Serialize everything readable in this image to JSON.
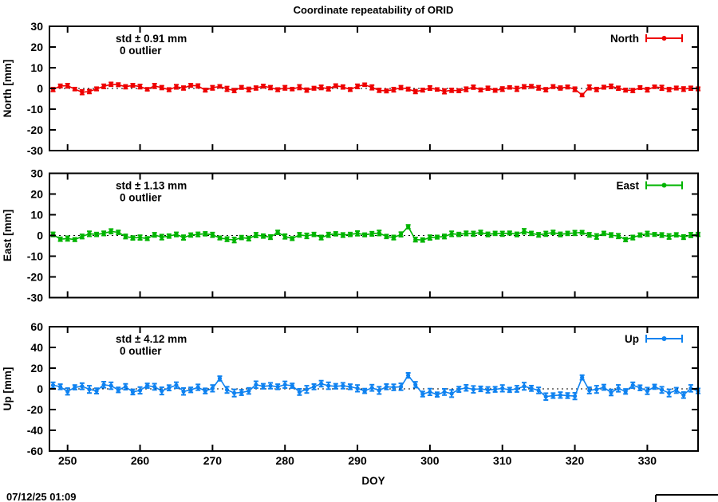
{
  "title": "Coordinate repeatability of ORID",
  "xlabel": "DOY",
  "timestamp": "07/12/25 01:09",
  "x_axis": {
    "ticks": [
      250,
      260,
      270,
      280,
      290,
      300,
      310,
      320,
      330
    ],
    "range": [
      247.5,
      337
    ]
  },
  "chart_data": [
    {
      "type": "line",
      "style": "points-with-y-errorbars",
      "panel": "North",
      "ylabel": "North [mm]",
      "std_label": "std ± 0.91 mm",
      "outlier_label": "0 outlier",
      "legend_label": "North",
      "color": "#ee0000",
      "ylim": [
        -30,
        30
      ],
      "y_ticks": [
        30,
        20,
        10,
        0,
        -10,
        -20,
        -30
      ],
      "x": [
        248,
        249,
        250,
        251,
        252,
        253,
        254,
        255,
        256,
        257,
        258,
        259,
        260,
        261,
        262,
        263,
        264,
        265,
        266,
        267,
        268,
        269,
        270,
        271,
        272,
        273,
        274,
        275,
        276,
        277,
        278,
        279,
        280,
        281,
        282,
        283,
        284,
        285,
        286,
        287,
        288,
        289,
        290,
        291,
        292,
        293,
        294,
        295,
        296,
        297,
        298,
        299,
        300,
        301,
        302,
        303,
        304,
        305,
        306,
        307,
        308,
        309,
        310,
        311,
        312,
        313,
        314,
        315,
        316,
        317,
        318,
        319,
        320,
        321,
        322,
        323,
        324,
        325,
        326,
        327,
        328,
        329,
        330,
        331,
        332,
        333,
        334,
        335,
        336,
        337
      ],
      "y": [
        -0.5,
        1.2,
        1.3,
        -0.3,
        -1.8,
        -1.5,
        -0.2,
        1.0,
        2.0,
        1.8,
        0.8,
        1.5,
        0.9,
        -0.4,
        1.2,
        0.4,
        -0.6,
        0.8,
        0.2,
        1.5,
        1.2,
        -0.8,
        0.3,
        1.0,
        -0.2,
        -1.0,
        0.5,
        -0.5,
        0.2,
        1.1,
        0.4,
        -0.6,
        0.3,
        -0.3,
        0.6,
        -0.8,
        0.1,
        0.5,
        -0.2,
        1.3,
        0.7,
        -0.5,
        1.0,
        1.8,
        0.5,
        -0.9,
        -1.2,
        -0.6,
        0.4,
        -0.3,
        -1.5,
        -0.8,
        0.2,
        -0.5,
        -1.4,
        -0.9,
        -1.1,
        -0.4,
        0.6,
        -0.7,
        0.1,
        -0.9,
        -0.3,
        0.5,
        -0.2,
        0.8,
        1.0,
        0.3,
        -0.6,
        0.9,
        0.2,
        0.7,
        -0.4,
        -3.2,
        0.5,
        -0.5,
        0.6,
        1.0,
        0.1,
        -0.8,
        -1.0,
        0.4,
        -0.6,
        0.8,
        0.3,
        -0.5,
        0.2,
        -0.3,
        0.1,
        -0.2
      ],
      "yerr": [
        0.9,
        0.8,
        1.0,
        0.7,
        1.1,
        0.9,
        0.8,
        1.0,
        0.9,
        0.8,
        0.9,
        0.8,
        1.0,
        0.7,
        1.1,
        0.9,
        0.8,
        1.0,
        0.9,
        0.8,
        0.9,
        0.8,
        1.0,
        0.7,
        1.1,
        0.9,
        0.8,
        1.0,
        0.9,
        0.8,
        0.9,
        0.8,
        1.0,
        0.7,
        1.1,
        0.9,
        0.8,
        1.0,
        0.9,
        0.8,
        0.9,
        0.8,
        1.0,
        0.7,
        1.1,
        0.9,
        0.8,
        1.0,
        0.9,
        0.8,
        0.9,
        0.8,
        1.0,
        0.7,
        1.1,
        0.9,
        0.8,
        1.0,
        0.9,
        0.8,
        0.9,
        0.8,
        1.0,
        0.7,
        1.1,
        0.9,
        0.8,
        1.0,
        0.9,
        0.8,
        0.9,
        0.8,
        1.0,
        0.7,
        1.1,
        0.9,
        0.8,
        1.0,
        0.9,
        0.8,
        0.9,
        0.8,
        1.0,
        0.7,
        1.1,
        0.9,
        0.8,
        1.0,
        0.9,
        0.8
      ]
    },
    {
      "type": "line",
      "style": "points-with-y-errorbars",
      "panel": "East",
      "ylabel": "East [mm]",
      "std_label": "std ± 1.13 mm",
      "outlier_label": "0 outlier",
      "legend_label": "East",
      "color": "#00b400",
      "ylim": [
        -30,
        30
      ],
      "y_ticks": [
        30,
        20,
        10,
        0,
        -10,
        -20,
        -30
      ],
      "x": [
        248,
        249,
        250,
        251,
        252,
        253,
        254,
        255,
        256,
        257,
        258,
        259,
        260,
        261,
        262,
        263,
        264,
        265,
        266,
        267,
        268,
        269,
        270,
        271,
        272,
        273,
        274,
        275,
        276,
        277,
        278,
        279,
        280,
        281,
        282,
        283,
        284,
        285,
        286,
        287,
        288,
        289,
        290,
        291,
        292,
        293,
        294,
        295,
        296,
        297,
        298,
        299,
        300,
        301,
        302,
        303,
        304,
        305,
        306,
        307,
        308,
        309,
        310,
        311,
        312,
        313,
        314,
        315,
        316,
        317,
        318,
        319,
        320,
        321,
        322,
        323,
        324,
        325,
        326,
        327,
        328,
        329,
        330,
        331,
        332,
        333,
        334,
        335,
        336,
        337
      ],
      "y": [
        0.5,
        -1.8,
        -1.5,
        -2.0,
        -0.5,
        0.8,
        0.5,
        1.0,
        2.0,
        1.5,
        -0.5,
        -1.2,
        -1.0,
        -1.5,
        0.3,
        -0.8,
        -0.3,
        0.5,
        -1.0,
        0.2,
        0.5,
        0.8,
        0.3,
        -1.2,
        -1.8,
        -2.2,
        -1.0,
        -1.5,
        0.2,
        -0.3,
        -0.8,
        1.5,
        -0.5,
        -1.5,
        0.3,
        -0.2,
        0.5,
        -1.0,
        0.3,
        0.8,
        0.2,
        0.5,
        1.0,
        0.3,
        0.8,
        1.2,
        -0.5,
        -1.0,
        0.5,
        4.2,
        -2.0,
        -2.2,
        -1.0,
        -0.8,
        -0.5,
        0.8,
        0.5,
        1.0,
        0.8,
        1.5,
        0.5,
        1.0,
        0.8,
        1.2,
        0.5,
        2.0,
        1.0,
        0.3,
        0.8,
        1.5,
        0.5,
        1.0,
        1.2,
        1.5,
        0.3,
        -0.5,
        1.0,
        0.2,
        -0.3,
        -2.0,
        -1.0,
        0.2,
        0.8,
        0.5,
        0.2,
        -0.5,
        0.3,
        -0.8,
        0.2,
        0.5
      ],
      "yerr": [
        1.0,
        0.9,
        1.1,
        0.8,
        1.0,
        1.2,
        0.9,
        1.0,
        1.1,
        0.9,
        1.0,
        0.9,
        1.1,
        0.8,
        1.0,
        1.2,
        0.9,
        1.0,
        1.1,
        0.9,
        1.0,
        0.9,
        1.1,
        0.8,
        1.0,
        1.2,
        0.9,
        1.0,
        1.1,
        0.9,
        1.0,
        0.9,
        1.1,
        0.8,
        1.0,
        1.2,
        0.9,
        1.0,
        1.1,
        0.9,
        1.0,
        0.9,
        1.1,
        0.8,
        1.0,
        1.2,
        0.9,
        1.0,
        1.1,
        0.9,
        1.0,
        0.9,
        1.1,
        0.8,
        1.0,
        1.2,
        0.9,
        1.0,
        1.1,
        0.9,
        1.0,
        0.9,
        1.1,
        0.8,
        1.0,
        1.2,
        0.9,
        1.0,
        1.1,
        0.9,
        1.0,
        0.9,
        1.1,
        0.8,
        1.0,
        1.2,
        0.9,
        1.0,
        1.1,
        0.9,
        1.0,
        0.9,
        1.1,
        0.8,
        1.0,
        1.2,
        0.9,
        1.0,
        1.1,
        0.9
      ]
    },
    {
      "type": "line",
      "style": "points-with-y-errorbars",
      "panel": "Up",
      "ylabel": "Up [mm]",
      "std_label": "std ± 4.12 mm",
      "outlier_label": "0 outlier",
      "legend_label": "Up",
      "color": "#0f82f0",
      "ylim": [
        -60,
        60
      ],
      "y_ticks": [
        60,
        40,
        20,
        0,
        -20,
        -40,
        -60
      ],
      "x": [
        248,
        249,
        250,
        251,
        252,
        253,
        254,
        255,
        256,
        257,
        258,
        259,
        260,
        261,
        262,
        263,
        264,
        265,
        266,
        267,
        268,
        269,
        270,
        271,
        272,
        273,
        274,
        275,
        276,
        277,
        278,
        279,
        280,
        281,
        282,
        283,
        284,
        285,
        286,
        287,
        288,
        289,
        290,
        291,
        292,
        293,
        294,
        295,
        296,
        297,
        298,
        299,
        300,
        301,
        302,
        303,
        304,
        305,
        306,
        307,
        308,
        309,
        310,
        311,
        312,
        313,
        314,
        315,
        316,
        317,
        318,
        319,
        320,
        321,
        322,
        323,
        324,
        325,
        326,
        327,
        328,
        329,
        330,
        331,
        332,
        333,
        334,
        335,
        336,
        337
      ],
      "y": [
        3.5,
        2.0,
        -2.5,
        1.5,
        2.5,
        -0.5,
        -2.0,
        4.0,
        3.0,
        -1.0,
        2.0,
        -3.0,
        -1.5,
        3.0,
        2.0,
        -2.0,
        1.0,
        3.5,
        -2.5,
        -1.0,
        1.5,
        -2.0,
        0.5,
        10.0,
        -1.0,
        -4.0,
        -3.5,
        -2.0,
        4.0,
        2.5,
        3.0,
        2.0,
        4.0,
        3.0,
        -3.0,
        -0.5,
        2.0,
        5.0,
        3.0,
        2.5,
        3.0,
        2.0,
        0.5,
        -2.0,
        1.0,
        -1.5,
        2.0,
        1.5,
        2.0,
        13.0,
        4.0,
        -5.0,
        -3.0,
        -5.5,
        -3.0,
        -4.5,
        -0.5,
        1.0,
        -0.5,
        0.0,
        -1.0,
        -0.5,
        0.5,
        -1.0,
        0.0,
        2.5,
        0.5,
        -1.5,
        -7.5,
        -6.5,
        -6.0,
        -6.5,
        -7.0,
        11.0,
        -1.5,
        -0.5,
        1.5,
        -3.5,
        0.5,
        -2.5,
        3.5,
        1.0,
        -2.0,
        2.0,
        -1.0,
        -4.0,
        -1.5,
        -6.0,
        0.5,
        -2.0
      ],
      "yerr": [
        2.8,
        2.5,
        3.2,
        2.2,
        3.0,
        3.5,
        2.6,
        2.9,
        3.3,
        2.4,
        2.8,
        2.5,
        3.2,
        2.2,
        3.0,
        3.5,
        2.6,
        2.9,
        3.3,
        2.4,
        2.8,
        2.5,
        3.2,
        2.2,
        3.0,
        3.5,
        2.6,
        2.9,
        3.3,
        2.4,
        2.8,
        2.5,
        3.2,
        2.2,
        3.0,
        3.5,
        2.6,
        2.9,
        3.3,
        2.4,
        2.8,
        2.5,
        3.2,
        2.2,
        3.0,
        3.5,
        2.6,
        2.9,
        3.3,
        2.4,
        2.8,
        2.5,
        3.2,
        2.2,
        3.0,
        3.5,
        2.6,
        2.9,
        3.3,
        2.4,
        2.8,
        2.5,
        3.2,
        2.2,
        3.0,
        3.5,
        2.6,
        2.9,
        3.3,
        2.4,
        2.8,
        2.5,
        3.2,
        2.2,
        3.0,
        3.5,
        2.6,
        2.9,
        3.3,
        2.4,
        2.8,
        2.5,
        3.2,
        2.2,
        3.0,
        3.5,
        2.6,
        2.9,
        3.3,
        2.4
      ]
    }
  ]
}
